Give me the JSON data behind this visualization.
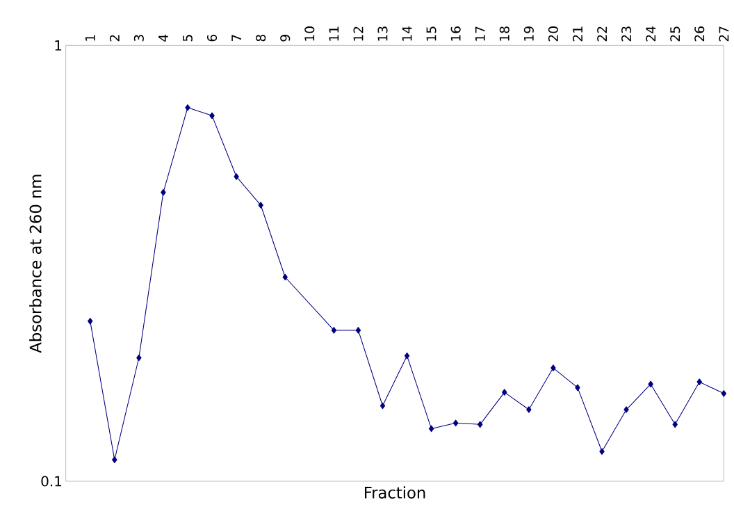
{
  "chart_data": {
    "type": "line",
    "xlabel": "Fraction",
    "ylabel": "Absorbance at 260 nm",
    "x": [
      1,
      2,
      3,
      4,
      5,
      6,
      7,
      8,
      9,
      11,
      12,
      13,
      14,
      15,
      16,
      17,
      18,
      19,
      20,
      21,
      22,
      23,
      24,
      25,
      26,
      27
    ],
    "series": [
      {
        "color": "#000080",
        "values": [
          0.233,
          0.112,
          0.192,
          0.46,
          0.72,
          0.69,
          0.5,
          0.43,
          0.294,
          0.222,
          0.222,
          0.149,
          0.194,
          0.132,
          0.136,
          0.135,
          0.16,
          0.146,
          0.182,
          0.164,
          0.117,
          0.146,
          0.167,
          0.135,
          0.169,
          0.159
        ]
      }
    ],
    "xlim": [
      0,
      27
    ],
    "xticks": [
      1,
      2,
      3,
      4,
      5,
      6,
      7,
      8,
      9,
      10,
      11,
      12,
      13,
      14,
      15,
      16,
      17,
      18,
      19,
      20,
      21,
      22,
      23,
      24,
      25,
      26,
      27
    ],
    "ylim": [
      0.1,
      1
    ],
    "yticks": [
      0.1,
      1
    ],
    "log": "y",
    "marker": "diamond",
    "line_style": "solid",
    "grid": false
  }
}
